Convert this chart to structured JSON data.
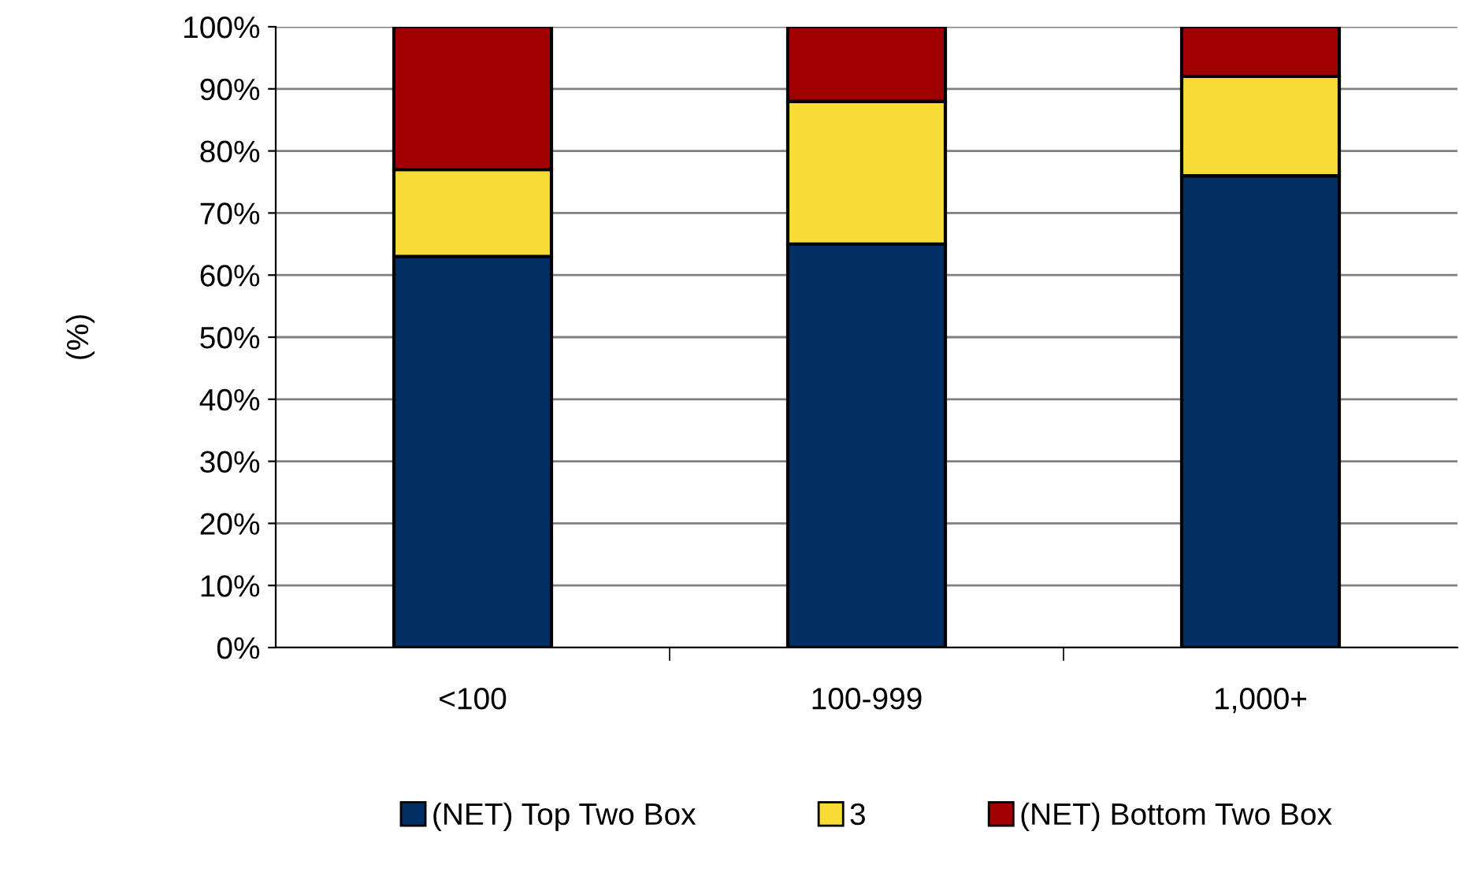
{
  "chart_data": {
    "type": "bar",
    "stacked": true,
    "ylabel": "(%)",
    "categories": [
      "<100",
      "100-999",
      "1,000+"
    ],
    "series": [
      {
        "name": "(NET) Top Two Box",
        "color": "#003063",
        "values": [
          63,
          65,
          76
        ]
      },
      {
        "name": "3",
        "color": "#f7dc37",
        "values": [
          14,
          23,
          16
        ]
      },
      {
        "name": "(NET) Bottom Two Box",
        "color": "#a00000",
        "values": [
          23,
          12,
          8
        ]
      }
    ],
    "ylim": [
      0,
      100
    ],
    "yticks": [
      {
        "value": 0,
        "label": "0%"
      },
      {
        "value": 10,
        "label": "10%"
      },
      {
        "value": 20,
        "label": "20%"
      },
      {
        "value": 30,
        "label": "30%"
      },
      {
        "value": 40,
        "label": "40%"
      },
      {
        "value": 50,
        "label": "50%"
      },
      {
        "value": 60,
        "label": "60%"
      },
      {
        "value": 70,
        "label": "70%"
      },
      {
        "value": 80,
        "label": "80%"
      },
      {
        "value": 90,
        "label": "90%"
      },
      {
        "value": 100,
        "label": "100%"
      }
    ],
    "grid": "y",
    "legend": "bottom"
  }
}
